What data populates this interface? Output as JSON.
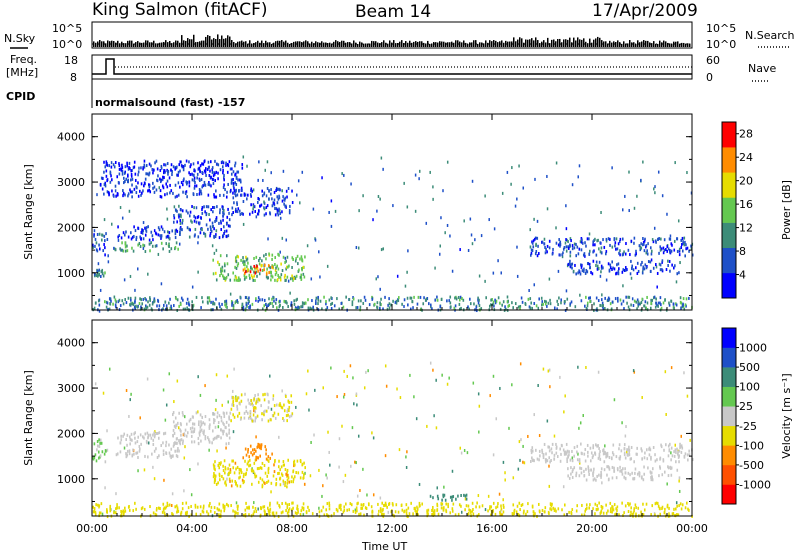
{
  "header": {
    "station": "King Salmon (fitACF)",
    "beam": "Beam 14",
    "date": "17/Apr/2009"
  },
  "strip": {
    "nsky_label": "N.Sky",
    "nsearch_label": "N.Search",
    "freq_label_1": "Freq.",
    "freq_label_2": "[MHz]",
    "nave_label": "Nave",
    "cpid_label": "CPID",
    "cpid_value": "normalsound (fast) -157",
    "noise_ticks": [
      "10^5",
      "10^0"
    ],
    "freq_ticks": [
      "18",
      "8"
    ],
    "nave_ticks": [
      "60",
      "0"
    ]
  },
  "chart_data": [
    {
      "type": "heatmap",
      "name": "power",
      "ylabel": "Slant Range [km]",
      "xlabel": "",
      "yticks": [
        1000,
        2000,
        3000,
        4000
      ],
      "ylim": [
        180,
        4500
      ],
      "xlim": [
        0,
        24
      ],
      "xticks": [
        "00:00",
        "04:00",
        "08:00",
        "12:00",
        "16:00",
        "20:00",
        "00:00"
      ],
      "colorbar": {
        "label": "Power [dB]",
        "ticks": [
          4,
          8,
          12,
          16,
          20,
          24,
          28
        ],
        "range": [
          0,
          30
        ],
        "colors": [
          "#0000ff",
          "#1e50c8",
          "#3c8c78",
          "#64c850",
          "#e6dc00",
          "#ff8c00",
          "#ff0000"
        ]
      },
      "patches": [
        {
          "t": [
            0.0,
            0.6
          ],
          "r": [
            1400,
            1900
          ],
          "v": 6
        },
        {
          "t": [
            0.8,
            3.5
          ],
          "r": [
            1500,
            1700
          ],
          "v": 12
        },
        {
          "t": [
            1.0,
            3.5
          ],
          "r": [
            1750,
            2050
          ],
          "v": 5
        },
        {
          "t": [
            3.2,
            5.5
          ],
          "r": [
            1800,
            2500
          ],
          "v": 6
        },
        {
          "t": [
            5.5,
            8.0
          ],
          "r": [
            2300,
            2900
          ],
          "v": 5
        },
        {
          "t": [
            4.8,
            8.5
          ],
          "r": [
            850,
            1450
          ],
          "v": 14
        },
        {
          "t": [
            6.0,
            7.2
          ],
          "r": [
            950,
            1200
          ],
          "v": 24
        },
        {
          "t": [
            0.0,
            0.5
          ],
          "r": [
            950,
            1100
          ],
          "v": 10
        },
        {
          "t": [
            0.3,
            6.0
          ],
          "r": [
            2700,
            3500
          ],
          "v": 4
        },
        {
          "t": [
            17.5,
            24.0
          ],
          "r": [
            1400,
            1800
          ],
          "v": 6
        },
        {
          "t": [
            19.0,
            23.5
          ],
          "r": [
            1000,
            1300
          ],
          "v": 5
        },
        {
          "t": [
            0.0,
            24.0
          ],
          "r": [
            200,
            500
          ],
          "v": 10
        }
      ]
    },
    {
      "type": "heatmap",
      "name": "velocity",
      "ylabel": "Slant Range [km]",
      "xlabel": "Time UT",
      "yticks": [
        1000,
        2000,
        3000,
        4000
      ],
      "ylim": [
        180,
        4500
      ],
      "xlim": [
        0,
        24
      ],
      "xticks": [
        "00:00",
        "04:00",
        "08:00",
        "12:00",
        "16:00",
        "20:00",
        "00:00"
      ],
      "colorbar": {
        "label": "Velocity [m s⁻¹]",
        "ticks": [
          "1000",
          "500",
          "100",
          "25",
          "-25",
          "-100",
          "-500",
          "-1000"
        ],
        "colors": [
          "#0000ff",
          "#1e50c8",
          "#3c8c78",
          "#64c850",
          "#c8c8c8",
          "#e6dc00",
          "#ff8c00",
          "#ff5000",
          "#ff0000"
        ]
      },
      "patches": [
        {
          "t": [
            0.0,
            0.6
          ],
          "r": [
            1400,
            1900
          ],
          "v": 25
        },
        {
          "t": [
            0.8,
            3.5
          ],
          "r": [
            1500,
            1700
          ],
          "v": 0
        },
        {
          "t": [
            1.0,
            3.5
          ],
          "r": [
            1750,
            2050
          ],
          "v": 0
        },
        {
          "t": [
            3.2,
            5.5
          ],
          "r": [
            1800,
            2500
          ],
          "v": 0
        },
        {
          "t": [
            5.5,
            8.0
          ],
          "r": [
            2300,
            2900
          ],
          "v": -25
        },
        {
          "t": [
            4.8,
            8.5
          ],
          "r": [
            850,
            1450
          ],
          "v": -80
        },
        {
          "t": [
            6.0,
            7.2
          ],
          "r": [
            1450,
            1800
          ],
          "v": -300
        },
        {
          "t": [
            17.5,
            24.0
          ],
          "r": [
            1400,
            1800
          ],
          "v": 0
        },
        {
          "t": [
            19.0,
            23.5
          ],
          "r": [
            1000,
            1300
          ],
          "v": 0
        },
        {
          "t": [
            13.5,
            15.0
          ],
          "r": [
            550,
            700
          ],
          "v": 150
        },
        {
          "t": [
            0.0,
            24.0
          ],
          "r": [
            200,
            500
          ],
          "v": -50
        }
      ]
    }
  ]
}
